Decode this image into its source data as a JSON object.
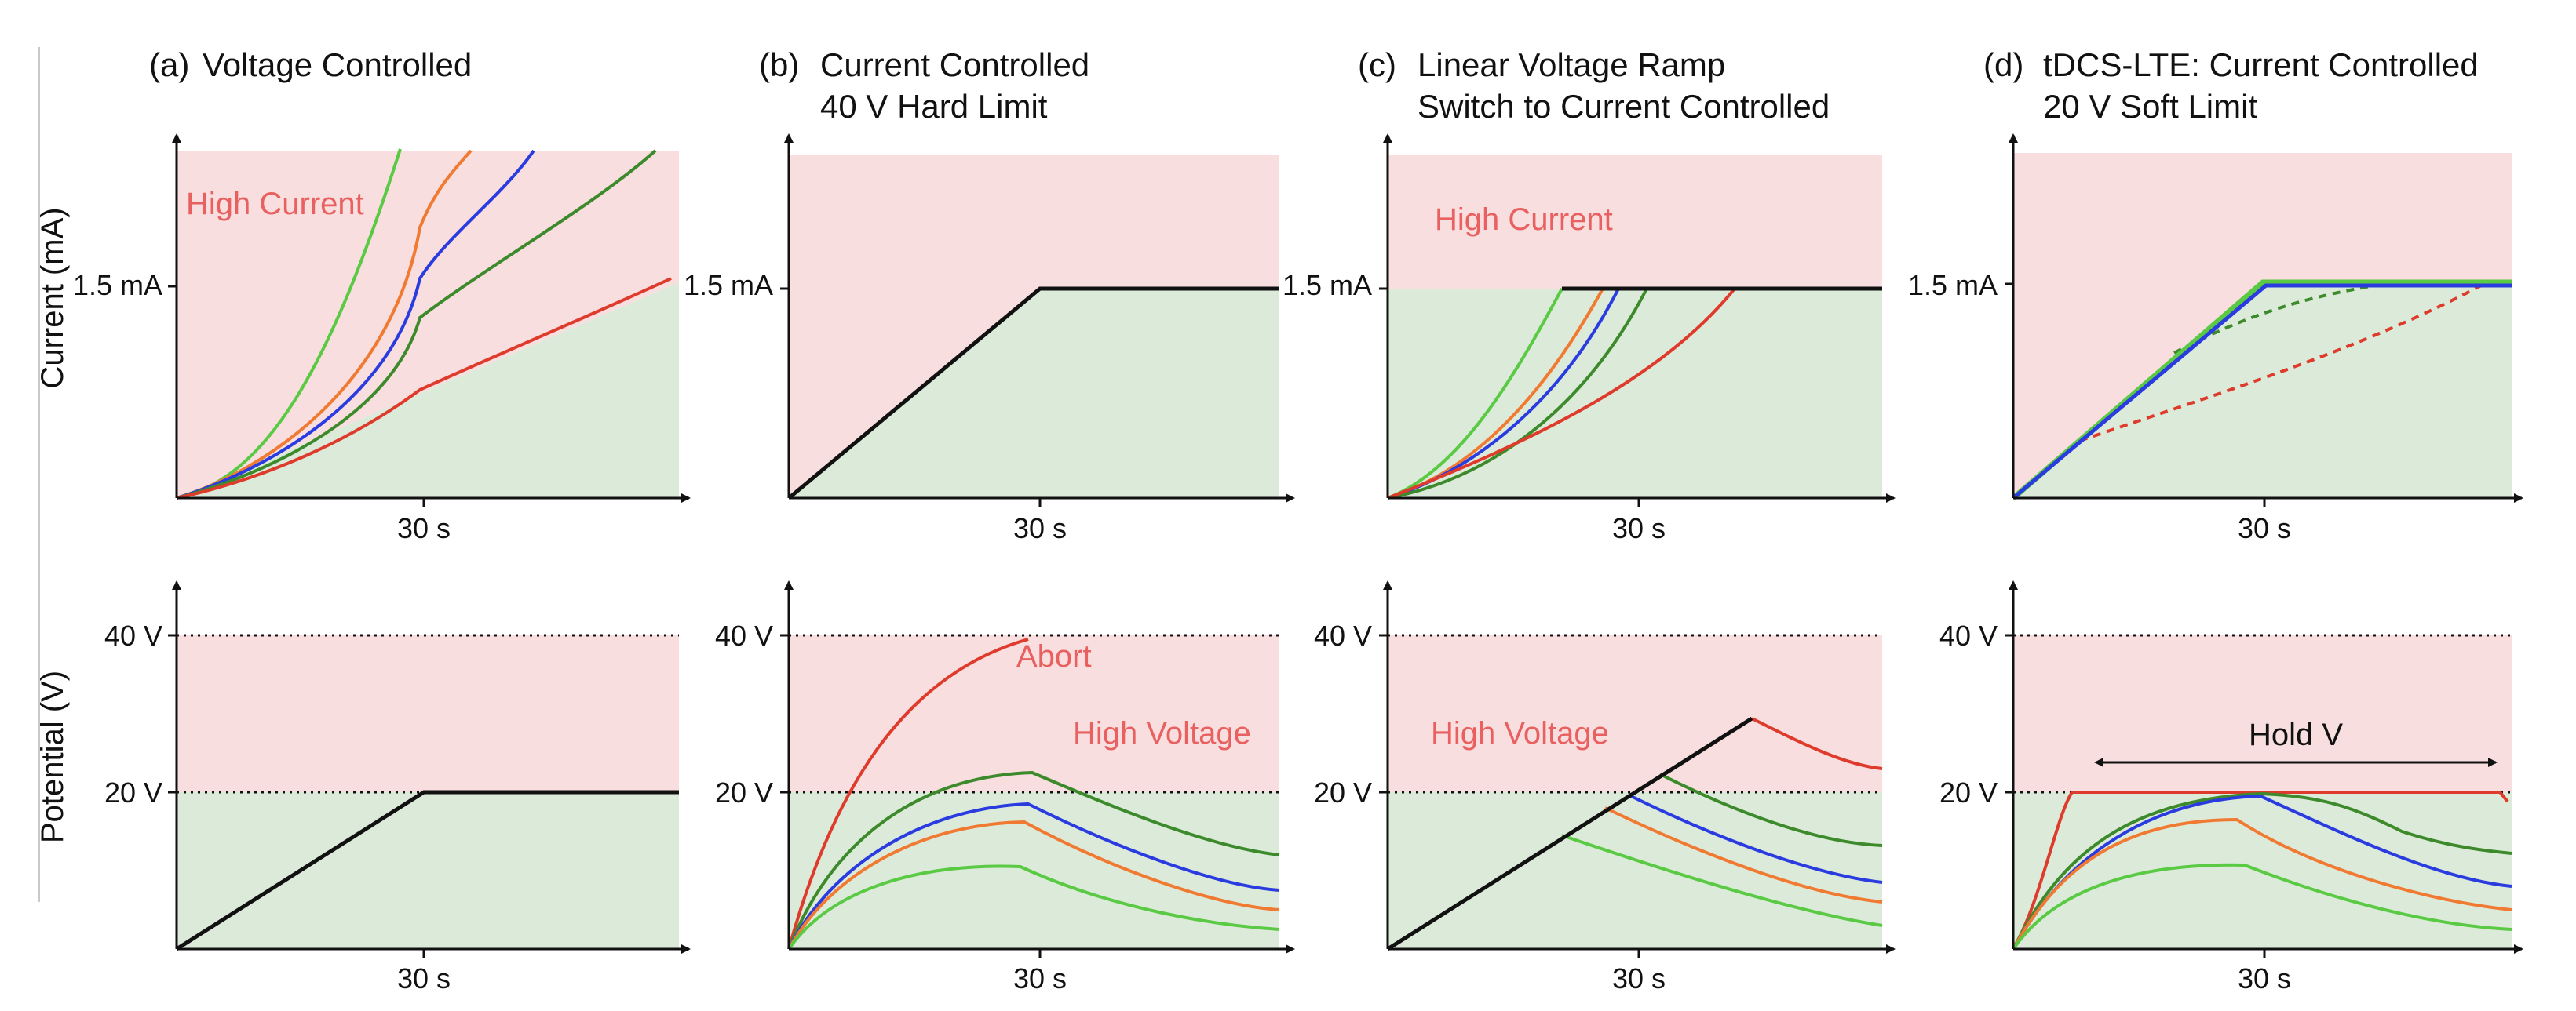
{
  "y_labels": {
    "current": "Current (mA)",
    "potential": "Potential (V)"
  },
  "ticks": {
    "time": "30 s",
    "current": "1.5 mA",
    "v40": "40 V",
    "v20": "20 V"
  },
  "colors": {
    "safe_fill": "#dcebd9",
    "danger_fill": "#f8dede",
    "region_text": "#e8605f",
    "axis": "#111111",
    "series": [
      "#5ac943",
      "#f07a32",
      "#2a3be0",
      "#3d8a2c",
      "#de3b2c"
    ]
  },
  "panels": [
    {
      "id": "a",
      "letter": "(a)",
      "title_lines": [
        "Voltage Controlled",
        ""
      ],
      "current_region_label": "High Current",
      "voltage_region_label": "",
      "annotation": ""
    },
    {
      "id": "b",
      "letter": "(b)",
      "title_lines": [
        "Current Controlled",
        "40 V Hard Limit"
      ],
      "current_region_label": "",
      "voltage_region_label": "High Voltage",
      "annotation": "Abort"
    },
    {
      "id": "c",
      "letter": "(c)",
      "title_lines": [
        "Linear Voltage Ramp",
        "Switch to Current Controlled"
      ],
      "current_region_label": "High Current",
      "voltage_region_label": "High Voltage",
      "annotation": ""
    },
    {
      "id": "d",
      "letter": "(d)",
      "title_lines": [
        "tDCS-LTE: Current Controlled",
        "20 V Soft Limit"
      ],
      "current_region_label": "",
      "voltage_region_label": "",
      "annotation": "Hold V"
    }
  ]
}
